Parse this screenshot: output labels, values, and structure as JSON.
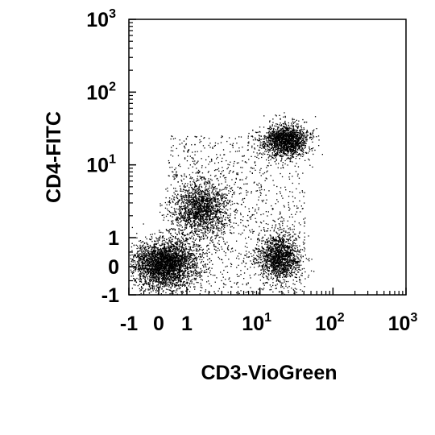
{
  "chart_data": {
    "type": "scatter",
    "title": "",
    "xlabel": "CD3-VioGreen",
    "ylabel": "CD4-FITC",
    "x_scale": "biexponential",
    "y_scale": "biexponential",
    "xlim": [
      -1,
      1000
    ],
    "ylim": [
      -1,
      1000
    ],
    "x_ticks": [
      {
        "base": "-1",
        "exp": ""
      },
      {
        "base": "0",
        "exp": ""
      },
      {
        "base": "1",
        "exp": ""
      },
      {
        "base": "10",
        "exp": "1"
      },
      {
        "base": "10",
        "exp": "2"
      },
      {
        "base": "10",
        "exp": "3"
      }
    ],
    "y_ticks": [
      {
        "base": "-1",
        "exp": ""
      },
      {
        "base": "0",
        "exp": ""
      },
      {
        "base": "1",
        "exp": ""
      },
      {
        "base": "10",
        "exp": "1"
      },
      {
        "base": "10",
        "exp": "2"
      },
      {
        "base": "10",
        "exp": "3"
      }
    ],
    "grid": false,
    "point_color": "#000000",
    "populations": [
      {
        "center_x": 0.2,
        "center_y": 0.1,
        "share": 0.34
      },
      {
        "center_x": 1.5,
        "center_y": 2.5,
        "share": 0.18
      },
      {
        "center_x": 18,
        "center_y": 0.3,
        "share": 0.16
      },
      {
        "center_x": 22,
        "center_y": 22,
        "share": 0.18
      },
      {
        "center_x": 2,
        "center_y": 2,
        "share": 0.14
      }
    ]
  }
}
